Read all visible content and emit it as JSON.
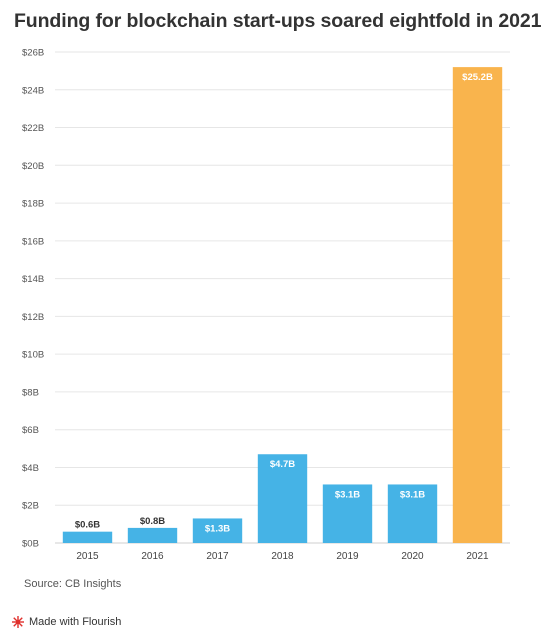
{
  "header": {
    "title": "Funding for blockchain start-ups soared eightfold in 2021"
  },
  "footer": {
    "source": "Source: CB Insights",
    "made_with": "Made with Flourish"
  },
  "colors": {
    "bar": "#45b3e6",
    "highlight": "#f9b44d",
    "grid": "#e6e6e6",
    "axis_text": "#555555",
    "flourish_mark": "#e0312d"
  },
  "chart_data": {
    "type": "bar",
    "title": "Funding for blockchain start-ups soared eightfold in 2021",
    "categories": [
      "2015",
      "2016",
      "2017",
      "2018",
      "2019",
      "2020",
      "2021"
    ],
    "values": [
      0.6,
      0.8,
      1.3,
      4.7,
      3.1,
      3.1,
      25.2
    ],
    "data_labels": [
      "$0.6B",
      "$0.8B",
      "$1.3B",
      "$4.7B",
      "$3.1B",
      "$3.1B",
      "$25.2B"
    ],
    "highlight_index": 6,
    "ylim": [
      0,
      26
    ],
    "yticks": [
      0,
      2,
      4,
      6,
      8,
      10,
      12,
      14,
      16,
      18,
      20,
      22,
      24,
      26
    ],
    "ytick_labels": [
      "$0B",
      "$2B",
      "$4B",
      "$6B",
      "$8B",
      "$10B",
      "$12B",
      "$14B",
      "$16B",
      "$18B",
      "$20B",
      "$22B",
      "$24B",
      "$26B"
    ],
    "xlabel": "",
    "ylabel": "",
    "grid": true
  }
}
